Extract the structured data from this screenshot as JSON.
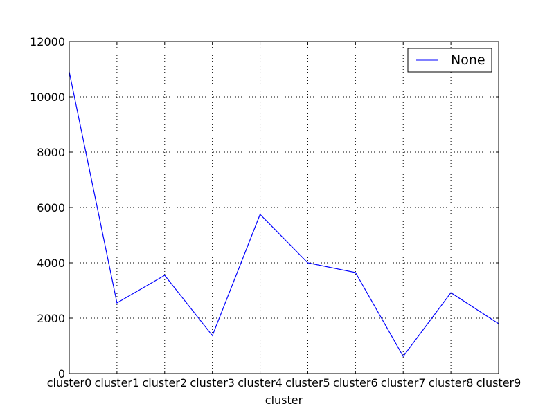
{
  "chart_data": {
    "type": "line",
    "title": "",
    "xlabel": "cluster",
    "ylabel": "",
    "categories": [
      "cluster0",
      "cluster1",
      "cluster2",
      "cluster3",
      "cluster4",
      "cluster5",
      "cluster6",
      "cluster7",
      "cluster8",
      "cluster9"
    ],
    "series": [
      {
        "name": "None",
        "color": "#0000ff",
        "values": [
          10900,
          2550,
          3550,
          1370,
          5750,
          4000,
          3650,
          620,
          2920,
          1800
        ]
      }
    ],
    "ylim": [
      0,
      12000
    ],
    "yticks": [
      "0",
      "2000",
      "4000",
      "6000",
      "8000",
      "10000",
      "12000"
    ],
    "grid": true,
    "legend_position": "top-right"
  }
}
